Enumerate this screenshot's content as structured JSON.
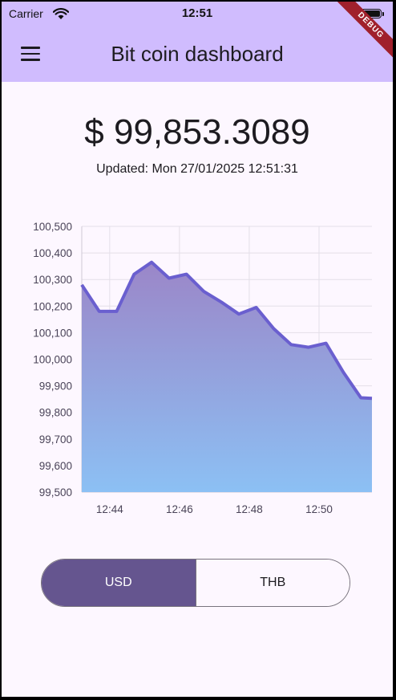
{
  "status_bar": {
    "carrier": "Carrier",
    "time": "12:51"
  },
  "debug_banner": "DEBUG",
  "app_bar": {
    "title": "Bit coin dashboard",
    "menu_icon": "menu-icon"
  },
  "price": {
    "display": "$ 99,853.3089",
    "updated": "Updated: Mon 27/01/2025 12:51:31"
  },
  "colors": {
    "app_bar": "#d0bcfe",
    "line": "#6a5fcf",
    "fill_top": "#9b86c8",
    "fill_bottom": "#8cc0f4",
    "active": "#65558f"
  },
  "chart_data": {
    "type": "area",
    "x": [
      "12:43:12",
      "12:43:42",
      "12:44:12",
      "12:44:42",
      "12:45:12",
      "12:45:42",
      "12:46:12",
      "12:46:42",
      "12:47:12",
      "12:47:42",
      "12:48:12",
      "12:48:42",
      "12:49:12",
      "12:49:42",
      "12:50:12",
      "12:50:42",
      "12:51:12",
      "12:51:31"
    ],
    "values": [
      100280,
      100180,
      100180,
      100320,
      100365,
      100305,
      100320,
      100255,
      100215,
      100170,
      100195,
      100115,
      100055,
      100045,
      100060,
      99950,
      99855,
      99853
    ],
    "ylim": [
      99500,
      100500
    ],
    "yticks": [
      "100,500",
      "100,400",
      "100,300",
      "100,200",
      "100,100",
      "100,000",
      "99,900",
      "99,800",
      "99,700",
      "99,600",
      "99,500"
    ],
    "xticks": [
      "12:44",
      "12:46",
      "12:48",
      "12:50"
    ],
    "grid": true,
    "legend": "none"
  },
  "currency_toggle": {
    "options": [
      "USD",
      "THB"
    ],
    "selected": "USD"
  }
}
